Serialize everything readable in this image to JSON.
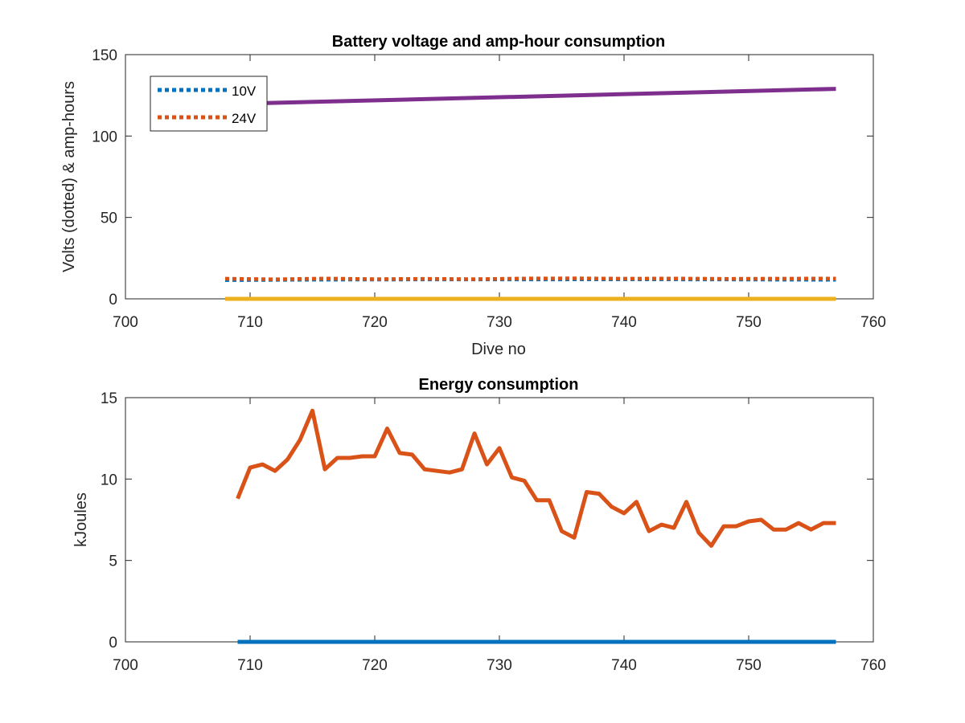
{
  "chart_data": [
    {
      "type": "line",
      "title": "Battery voltage and amp-hour consumption",
      "xlabel": "Dive no",
      "ylabel": "Volts (dotted) & amp-hours",
      "xlim": [
        700,
        760
      ],
      "ylim": [
        0,
        150
      ],
      "xticks": [
        700,
        710,
        720,
        730,
        740,
        750,
        760
      ],
      "yticks": [
        0,
        50,
        100,
        150
      ],
      "grid": false,
      "legend_position": "top-left",
      "series": [
        {
          "name": "10V",
          "style": "dotted",
          "color": "#0072BD",
          "x": [
            708,
            716,
            724,
            732,
            740,
            748,
            757
          ],
          "y": [
            11.5,
            11.8,
            11.9,
            11.9,
            12.0,
            11.9,
            11.7
          ]
        },
        {
          "name": "24V",
          "style": "dotted",
          "color": "#D95319",
          "x": [
            708,
            712,
            716,
            720,
            724,
            728,
            732,
            736,
            740,
            744,
            748,
            752,
            757
          ],
          "y": [
            12.4,
            12.0,
            12.5,
            12.1,
            12.3,
            12.1,
            12.5,
            12.6,
            12.4,
            12.5,
            12.3,
            12.4,
            12.5
          ]
        },
        {
          "style": "solid",
          "color": "#7E2F8E",
          "x": [
            710,
            757
          ],
          "y": [
            120,
            129
          ]
        },
        {
          "style": "solid",
          "color": "#EDB120",
          "x": [
            708,
            757
          ],
          "y": [
            0,
            0
          ]
        }
      ]
    },
    {
      "type": "line",
      "title": "Energy consumption",
      "xlabel": "",
      "ylabel": "kJoules",
      "xlim": [
        700,
        760
      ],
      "ylim": [
        0,
        15
      ],
      "xticks": [
        700,
        710,
        720,
        730,
        740,
        750,
        760
      ],
      "yticks": [
        0,
        5,
        10,
        15
      ],
      "grid": false,
      "series": [
        {
          "style": "solid",
          "color": "#0072BD",
          "x": [
            709,
            757
          ],
          "y": [
            0,
            0
          ]
        },
        {
          "style": "solid",
          "color": "#D95319",
          "x": [
            709,
            710,
            711,
            712,
            713,
            714,
            715,
            716,
            717,
            718,
            719,
            720,
            721,
            722,
            723,
            724,
            725,
            726,
            727,
            728,
            729,
            730,
            731,
            732,
            733,
            734,
            735,
            736,
            737,
            738,
            739,
            740,
            741,
            742,
            743,
            744,
            745,
            746,
            747,
            748,
            749,
            750,
            751,
            752,
            753,
            754,
            755,
            756,
            757
          ],
          "y": [
            8.8,
            10.7,
            10.9,
            10.5,
            11.2,
            12.4,
            14.2,
            10.6,
            11.3,
            11.3,
            11.4,
            11.4,
            13.1,
            11.6,
            11.5,
            10.6,
            10.5,
            10.4,
            10.6,
            12.8,
            10.9,
            11.9,
            10.1,
            9.9,
            8.7,
            8.7,
            6.8,
            6.4,
            9.2,
            9.1,
            8.3,
            7.9,
            8.6,
            6.8,
            7.2,
            7.0,
            8.6,
            6.7,
            5.9,
            7.1,
            7.1,
            7.4,
            7.5,
            6.9,
            6.9,
            7.3,
            6.9,
            7.3,
            7.3
          ]
        }
      ]
    }
  ]
}
